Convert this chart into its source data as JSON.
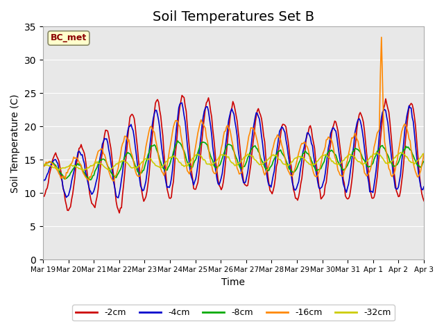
{
  "title": "Soil Temperatures Set B",
  "xlabel": "Time",
  "ylabel": "Soil Temperature (C)",
  "annotation": "BC_met",
  "ylim": [
    0,
    35
  ],
  "series_labels": [
    "-2cm",
    "-4cm",
    "-8cm",
    "-16cm",
    "-32cm"
  ],
  "series_colors": [
    "#cc0000",
    "#0000cc",
    "#00aa00",
    "#ff8800",
    "#cccc00"
  ],
  "background_color": "#e8e8e8",
  "x_tick_labels": [
    "Mar 19",
    "Mar 20",
    "Mar 21",
    "Mar 22",
    "Mar 23",
    "Mar 24",
    "Mar 25",
    "Mar 26",
    "Mar 27",
    "Mar 28",
    "Mar 29",
    "Mar 30",
    "Mar 31",
    "Apr 1",
    "Apr 2",
    "Apr 3"
  ],
  "title_fontsize": 14
}
